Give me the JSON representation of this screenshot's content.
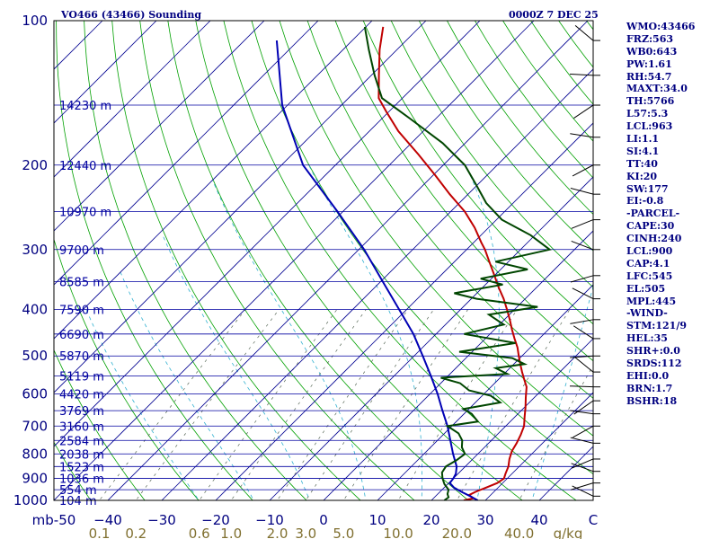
{
  "header": {
    "station": "VO466 (43466) Sounding",
    "time": "0000Z  7 DEC 25"
  },
  "indices": [
    "WMO:43466",
    "FRZ:563",
    "WB0:643",
    "PW:1.61",
    "RH:54.7",
    "MAXT:34.0",
    "TH:5766",
    "L57:5.3",
    "LCL:963",
    "LI:1.1",
    "SI:4.1",
    "TT:40",
    "KI:20",
    "SW:177",
    "EI:-0.8",
    "-PARCEL-",
    "CAPE:30",
    "CINH:240",
    "LCL:900",
    "CAP:4.1",
    "LFC:545",
    "EL:505",
    "MPL:445",
    "-WIND-",
    "STM:121/9",
    "HEL:35",
    "SHR+:0.0",
    "SRDS:112",
    "EHI:0.0",
    "BRN:1.7",
    "BSHR:18"
  ],
  "chart_data": {
    "type": "line",
    "chart_kind": "skew-T log-P sounding",
    "y_axis": {
      "scale": "log",
      "range_hpa": [
        1000,
        100
      ],
      "ticks": [
        100,
        200,
        300,
        400,
        500,
        600,
        700,
        800,
        900,
        1000
      ]
    },
    "x_axis": {
      "range_c": [
        -50,
        50
      ],
      "temperature_ticks": [
        -50,
        -40,
        -30,
        -20,
        -10,
        0,
        10,
        20,
        30,
        40,
        50
      ],
      "temperature_tick_labels": [
        "mb-50",
        "−40",
        "−30",
        "−20",
        "−10",
        "0",
        "10",
        "20",
        "30",
        "40",
        "C"
      ],
      "mixing_ratio_ticks": [
        "0.1",
        "0.2",
        "0.6",
        "1.0",
        "2.0",
        "3.0",
        "5.0",
        "10.0",
        "20.0",
        "40.0"
      ],
      "mixing_ratio_label": "g/kg"
    },
    "height_labels": [
      {
        "p": 150,
        "label": "14230 m"
      },
      {
        "p": 200,
        "label": "12440 m"
      },
      {
        "p": 250,
        "label": "10970 m"
      },
      {
        "p": 300,
        "label": "9700 m"
      },
      {
        "p": 350,
        "label": "8585 m"
      },
      {
        "p": 400,
        "label": "7590 m"
      },
      {
        "p": 450,
        "label": "6690 m"
      },
      {
        "p": 500,
        "label": "5870 m"
      },
      {
        "p": 550,
        "label": "5119 m"
      },
      {
        "p": 600,
        "label": "4420 m"
      },
      {
        "p": 650,
        "label": "3769 m"
      },
      {
        "p": 700,
        "label": "3160 m"
      },
      {
        "p": 750,
        "label": "2584 m"
      },
      {
        "p": 800,
        "label": "2038 m"
      },
      {
        "p": 850,
        "label": "1523 m"
      },
      {
        "p": 900,
        "label": "1036 m"
      },
      {
        "p": 950,
        "label": "554 m"
      },
      {
        "p": 1000,
        "label": "104 m"
      }
    ],
    "series": [
      {
        "color": "#c00000",
        "points": [
          [
            1000,
            26.0
          ],
          [
            990,
            27.4
          ],
          [
            975,
            26.0
          ],
          [
            960,
            26.6
          ],
          [
            940,
            27.8
          ],
          [
            920,
            29.0
          ],
          [
            900,
            29.4
          ],
          [
            880,
            28.8
          ],
          [
            850,
            28.0
          ],
          [
            820,
            26.8
          ],
          [
            790,
            25.8
          ],
          [
            760,
            25.2
          ],
          [
            730,
            24.4
          ],
          [
            700,
            23.4
          ],
          [
            670,
            21.8
          ],
          [
            640,
            20.2
          ],
          [
            610,
            18.4
          ],
          [
            580,
            16.6
          ],
          [
            560,
            14.8
          ],
          [
            540,
            13.0
          ],
          [
            520,
            11.2
          ],
          [
            500,
            9.4
          ],
          [
            480,
            7.6
          ],
          [
            460,
            5.4
          ],
          [
            440,
            3.2
          ],
          [
            420,
            1.0
          ],
          [
            400,
            -1.4
          ],
          [
            380,
            -4.0
          ],
          [
            360,
            -7.0
          ],
          [
            340,
            -10.0
          ],
          [
            320,
            -13.2
          ],
          [
            300,
            -16.6
          ],
          [
            290,
            -18.6
          ],
          [
            270,
            -22.6
          ],
          [
            250,
            -27.4
          ],
          [
            230,
            -33.4
          ],
          [
            210,
            -39.6
          ],
          [
            190,
            -46.6
          ],
          [
            170,
            -54.6
          ],
          [
            155,
            -60.4
          ],
          [
            145,
            -64.4
          ],
          [
            130,
            -68.6
          ],
          [
            115,
            -73.2
          ],
          [
            103,
            -76.8
          ]
        ]
      },
      {
        "color": "#0000b4",
        "points": [
          [
            1000,
            28.6
          ],
          [
            980,
            26.4
          ],
          [
            960,
            24.0
          ],
          [
            940,
            21.8
          ],
          [
            920,
            20.2
          ],
          [
            900,
            20.0
          ],
          [
            880,
            19.6
          ],
          [
            850,
            18.4
          ],
          [
            800,
            15.4
          ],
          [
            750,
            12.4
          ],
          [
            700,
            9.2
          ],
          [
            650,
            5.4
          ],
          [
            600,
            1.4
          ],
          [
            550,
            -3.2
          ],
          [
            500,
            -8.4
          ],
          [
            450,
            -14.2
          ],
          [
            400,
            -21.4
          ],
          [
            350,
            -29.6
          ],
          [
            300,
            -39.0
          ],
          [
            250,
            -51.0
          ],
          [
            200,
            -66.0
          ],
          [
            150,
            -81.0
          ],
          [
            110,
            -94.0
          ]
        ]
      },
      {
        "color": "#004600",
        "points": [
          [
            1000,
            22.4
          ],
          [
            985,
            22.6
          ],
          [
            970,
            21.8
          ],
          [
            950,
            21.2
          ],
          [
            925,
            19.4
          ],
          [
            900,
            18.0
          ],
          [
            875,
            16.8
          ],
          [
            850,
            16.4
          ],
          [
            825,
            17.2
          ],
          [
            800,
            17.6
          ],
          [
            775,
            15.8
          ],
          [
            750,
            14.6
          ],
          [
            725,
            12.6
          ],
          [
            700,
            9.2
          ],
          [
            685,
            14.0
          ],
          [
            660,
            11.4
          ],
          [
            645,
            9.0
          ],
          [
            625,
            14.6
          ],
          [
            605,
            11.6
          ],
          [
            590,
            6.6
          ],
          [
            570,
            3.6
          ],
          [
            555,
            -1.0
          ],
          [
            545,
            10.6
          ],
          [
            530,
            7.4
          ],
          [
            520,
            12.0
          ],
          [
            505,
            8.6
          ],
          [
            490,
            -2.4
          ],
          [
            470,
            6.4
          ],
          [
            450,
            -4.8
          ],
          [
            430,
            0.8
          ],
          [
            410,
            -3.8
          ],
          [
            395,
            3.8
          ],
          [
            380,
            -9.0
          ],
          [
            370,
            -14.2
          ],
          [
            355,
            -6.8
          ],
          [
            345,
            -12.0
          ],
          [
            330,
            -5.0
          ],
          [
            318,
            -12.4
          ],
          [
            300,
            -4.6
          ],
          [
            280,
            -10.8
          ],
          [
            260,
            -19.0
          ],
          [
            240,
            -25.0
          ],
          [
            220,
            -30.2
          ],
          [
            200,
            -36.0
          ],
          [
            180,
            -44.2
          ],
          [
            160,
            -54.8
          ],
          [
            145,
            -63.8
          ],
          [
            130,
            -69.4
          ],
          [
            115,
            -75.2
          ],
          [
            103,
            -80.2
          ]
        ]
      }
    ]
  }
}
